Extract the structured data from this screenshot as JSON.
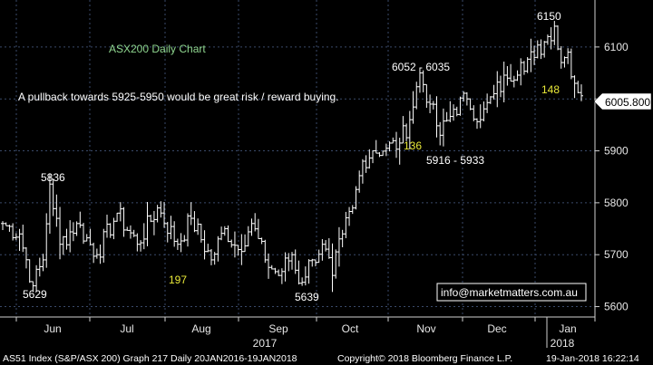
{
  "chart_data": {
    "type": "bar",
    "style": "ohlc",
    "title": "ASX200 Daily Chart",
    "subtitle": "A pullback towards 5925-5950 would be great risk / reward buying.",
    "x_ticks": [
      "Jun",
      "Jul",
      "Aug",
      "Sep",
      "Oct",
      "Nov",
      "Dec",
      "Jan"
    ],
    "x_year_labels": [
      "2017",
      "2018"
    ],
    "y_ticks": [
      5600,
      5700,
      5800,
      5900,
      6000,
      6100
    ],
    "ylim": [
      5580,
      6180
    ],
    "grid": true,
    "last_price": "6005.800",
    "anchors": [
      {
        "day": 0,
        "v": 5760
      },
      {
        "day": 5,
        "v": 5740
      },
      {
        "day": 9,
        "v": 5640
      },
      {
        "day": 12,
        "v": 5690
      },
      {
        "day": 14,
        "v": 5836
      },
      {
        "day": 17,
        "v": 5720
      },
      {
        "day": 22,
        "v": 5760
      },
      {
        "day": 28,
        "v": 5700
      },
      {
        "day": 34,
        "v": 5780
      },
      {
        "day": 40,
        "v": 5720
      },
      {
        "day": 46,
        "v": 5790
      },
      {
        "day": 52,
        "v": 5720
      },
      {
        "day": 56,
        "v": 5770
      },
      {
        "day": 62,
        "v": 5690
      },
      {
        "day": 66,
        "v": 5750
      },
      {
        "day": 70,
        "v": 5710
      },
      {
        "day": 74,
        "v": 5760
      },
      {
        "day": 78,
        "v": 5690
      },
      {
        "day": 82,
        "v": 5660
      },
      {
        "day": 86,
        "v": 5700
      },
      {
        "day": 88,
        "v": 5645
      },
      {
        "day": 92,
        "v": 5690
      },
      {
        "day": 95,
        "v": 5720
      },
      {
        "day": 98,
        "v": 5660
      },
      {
        "day": 101,
        "v": 5740
      },
      {
        "day": 104,
        "v": 5790
      },
      {
        "day": 107,
        "v": 5880
      },
      {
        "day": 110,
        "v": 5900
      },
      {
        "day": 114,
        "v": 5905
      },
      {
        "day": 118,
        "v": 5915
      },
      {
        "day": 121,
        "v": 5960
      },
      {
        "day": 124,
        "v": 6050
      },
      {
        "day": 127,
        "v": 5990
      },
      {
        "day": 130,
        "v": 5930
      },
      {
        "day": 134,
        "v": 5980
      },
      {
        "day": 138,
        "v": 6000
      },
      {
        "day": 142,
        "v": 5960
      },
      {
        "day": 146,
        "v": 6010
      },
      {
        "day": 150,
        "v": 6040
      },
      {
        "day": 154,
        "v": 6070
      },
      {
        "day": 158,
        "v": 6080
      },
      {
        "day": 162,
        "v": 6120
      },
      {
        "day": 164,
        "v": 6140
      },
      {
        "day": 166,
        "v": 6070
      },
      {
        "day": 168,
        "v": 6090
      },
      {
        "day": 170,
        "v": 6030
      },
      {
        "day": 172,
        "v": 6006
      }
    ],
    "annotations": [
      {
        "text": "5836",
        "color": "white"
      },
      {
        "text": "5629",
        "color": "white"
      },
      {
        "text": "197",
        "color": "yellow"
      },
      {
        "text": "5639",
        "color": "white"
      },
      {
        "text": "6052 - 6035",
        "color": "white"
      },
      {
        "text": "136",
        "color": "yellow"
      },
      {
        "text": "5916 - 5933",
        "color": "white"
      },
      {
        "text": "6150",
        "color": "white"
      },
      {
        "text": "148",
        "color": "yellow"
      }
    ],
    "contact": "info@marketmatters.com.au",
    "footer": {
      "left": "AS51 Index (S&P/ASX 200) Graph 217  Daily 20JAN2016-19JAN2018",
      "center": "Copyright© 2018 Bloomberg Finance L.P.",
      "right": "19-Jan-2018 16:22:14"
    },
    "colors": {
      "background": "#000000",
      "bars": "#ffffff",
      "grid": "#3a4a6a",
      "annotation_yellow": "#e8e838",
      "title_green": "#8fd68f"
    }
  }
}
